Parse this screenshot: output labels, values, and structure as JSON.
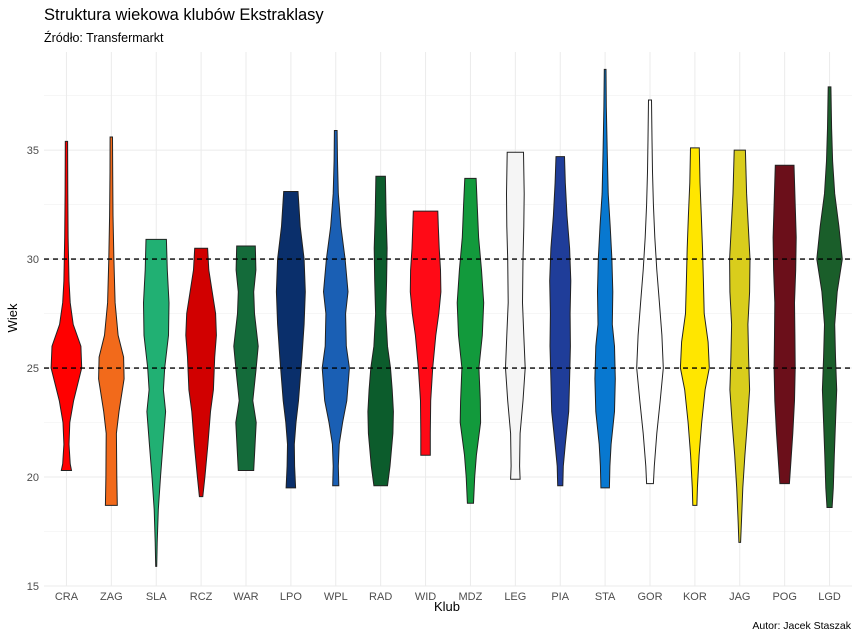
{
  "chart_data": {
    "type": "violin",
    "title": "Struktura wiekowa klubów Ekstraklasy",
    "subtitle": "Źródło: Transfermarkt",
    "xlabel": "Klub",
    "ylabel": "Wiek",
    "caption": "Autor: Jacek Staszak",
    "ylim": [
      15,
      39.5
    ],
    "yticks": [
      15,
      20,
      25,
      30,
      35
    ],
    "reference_lines": [
      25,
      30
    ],
    "grid": true,
    "categories": [
      "CRA",
      "ZAG",
      "SLA",
      "RCZ",
      "WAR",
      "LPO",
      "WPL",
      "RAD",
      "WID",
      "MDZ",
      "LEG",
      "PIA",
      "STA",
      "GOR",
      "KOR",
      "JAG",
      "POG",
      "LGD"
    ],
    "series": [
      {
        "club": "CRA",
        "color": "#ff0000",
        "min": 20.3,
        "max": 35.4,
        "density": [
          [
            20.3,
            0.3
          ],
          [
            20.6,
            0.22
          ],
          [
            21.5,
            0.15
          ],
          [
            22.5,
            0.2
          ],
          [
            23.5,
            0.42
          ],
          [
            25,
            0.9
          ],
          [
            26,
            0.85
          ],
          [
            27,
            0.4
          ],
          [
            28,
            0.22
          ],
          [
            29,
            0.15
          ],
          [
            31,
            0.1
          ],
          [
            33,
            0.08
          ],
          [
            35.4,
            0.07
          ]
        ]
      },
      {
        "club": "ZAG",
        "color": "#f26a1b",
        "min": 18.7,
        "max": 35.6,
        "density": [
          [
            18.7,
            0.35
          ],
          [
            20,
            0.32
          ],
          [
            22,
            0.3
          ],
          [
            23,
            0.45
          ],
          [
            24.5,
            0.75
          ],
          [
            25.5,
            0.72
          ],
          [
            26.5,
            0.4
          ],
          [
            28,
            0.22
          ],
          [
            30,
            0.15
          ],
          [
            32,
            0.1
          ],
          [
            34,
            0.08
          ],
          [
            35.6,
            0.07
          ]
        ]
      },
      {
        "club": "SLA",
        "color": "#21b073",
        "min": 15.9,
        "max": 30.9,
        "density": [
          [
            15.9,
            0.03
          ],
          [
            17,
            0.06
          ],
          [
            18.5,
            0.12
          ],
          [
            20,
            0.25
          ],
          [
            21.5,
            0.4
          ],
          [
            23,
            0.55
          ],
          [
            24,
            0.42
          ],
          [
            25,
            0.5
          ],
          [
            26.5,
            0.72
          ],
          [
            28,
            0.75
          ],
          [
            29.5,
            0.65
          ],
          [
            30.9,
            0.6
          ]
        ]
      },
      {
        "club": "RCZ",
        "color": "#d10000",
        "min": 19.1,
        "max": 30.5,
        "density": [
          [
            19.1,
            0.1
          ],
          [
            20,
            0.22
          ],
          [
            21.5,
            0.4
          ],
          [
            23,
            0.55
          ],
          [
            24,
            0.72
          ],
          [
            25.5,
            0.8
          ],
          [
            26.5,
            0.9
          ],
          [
            27.5,
            0.85
          ],
          [
            28.5,
            0.65
          ],
          [
            29.5,
            0.45
          ],
          [
            30.5,
            0.38
          ]
        ]
      },
      {
        "club": "WAR",
        "color": "#146b3a",
        "min": 20.3,
        "max": 30.6,
        "density": [
          [
            20.3,
            0.45
          ],
          [
            21,
            0.5
          ],
          [
            22.5,
            0.6
          ],
          [
            23.5,
            0.4
          ],
          [
            25,
            0.6
          ],
          [
            26,
            0.72
          ],
          [
            27.5,
            0.5
          ],
          [
            28.5,
            0.45
          ],
          [
            29.5,
            0.58
          ],
          [
            30.6,
            0.55
          ]
        ]
      },
      {
        "club": "LPO",
        "color": "#0a2f6b",
        "min": 19.5,
        "max": 33.1,
        "density": [
          [
            19.5,
            0.28
          ],
          [
            20.5,
            0.22
          ],
          [
            21.5,
            0.2
          ],
          [
            22.5,
            0.3
          ],
          [
            23.5,
            0.45
          ],
          [
            24.5,
            0.55
          ],
          [
            25.5,
            0.65
          ],
          [
            27,
            0.78
          ],
          [
            28.5,
            0.85
          ],
          [
            30,
            0.78
          ],
          [
            31.5,
            0.55
          ],
          [
            33.1,
            0.42
          ]
        ]
      },
      {
        "club": "WPL",
        "color": "#1a5fb4",
        "min": 19.6,
        "max": 35.9,
        "density": [
          [
            19.6,
            0.18
          ],
          [
            20.5,
            0.15
          ],
          [
            21.5,
            0.2
          ],
          [
            22.5,
            0.4
          ],
          [
            23.5,
            0.65
          ],
          [
            25,
            0.8
          ],
          [
            26,
            0.62
          ],
          [
            27.5,
            0.58
          ],
          [
            28.5,
            0.72
          ],
          [
            30,
            0.55
          ],
          [
            31.5,
            0.3
          ],
          [
            33,
            0.15
          ],
          [
            34.5,
            0.1
          ],
          [
            35.9,
            0.08
          ]
        ]
      },
      {
        "club": "RAD",
        "color": "#0c5c2c",
        "min": 19.6,
        "max": 33.8,
        "density": [
          [
            19.6,
            0.4
          ],
          [
            20.5,
            0.55
          ],
          [
            22,
            0.72
          ],
          [
            23,
            0.75
          ],
          [
            24,
            0.68
          ],
          [
            25,
            0.58
          ],
          [
            26,
            0.4
          ],
          [
            27.5,
            0.3
          ],
          [
            29,
            0.35
          ],
          [
            30.5,
            0.38
          ],
          [
            32,
            0.32
          ],
          [
            33.8,
            0.28
          ]
        ]
      },
      {
        "club": "WID",
        "color": "#ff0a16",
        "min": 21.0,
        "max": 32.2,
        "density": [
          [
            21,
            0.28
          ],
          [
            22,
            0.28
          ],
          [
            23.5,
            0.3
          ],
          [
            25,
            0.42
          ],
          [
            26.5,
            0.6
          ],
          [
            27.5,
            0.78
          ],
          [
            28.5,
            0.9
          ],
          [
            29.5,
            0.88
          ],
          [
            30.5,
            0.8
          ],
          [
            31.5,
            0.75
          ],
          [
            32.2,
            0.72
          ]
        ]
      },
      {
        "club": "MDZ",
        "color": "#129a3c",
        "min": 18.8,
        "max": 33.7,
        "density": [
          [
            18.8,
            0.18
          ],
          [
            20,
            0.25
          ],
          [
            21,
            0.35
          ],
          [
            22.5,
            0.6
          ],
          [
            23.5,
            0.58
          ],
          [
            25,
            0.5
          ],
          [
            26.5,
            0.7
          ],
          [
            28,
            0.78
          ],
          [
            29.5,
            0.65
          ],
          [
            31,
            0.48
          ],
          [
            32.5,
            0.4
          ],
          [
            33.7,
            0.33
          ]
        ]
      },
      {
        "club": "LEG",
        "color": "#f5f5f5",
        "min": 19.9,
        "max": 34.9,
        "density": [
          [
            19.9,
            0.28
          ],
          [
            20.5,
            0.25
          ],
          [
            22,
            0.28
          ],
          [
            23.5,
            0.45
          ],
          [
            25,
            0.58
          ],
          [
            26.5,
            0.5
          ],
          [
            28,
            0.42
          ],
          [
            30,
            0.45
          ],
          [
            31.5,
            0.5
          ],
          [
            33,
            0.52
          ],
          [
            34.9,
            0.48
          ]
        ]
      },
      {
        "club": "PIA",
        "color": "#1f3d99",
        "min": 19.6,
        "max": 34.7,
        "density": [
          [
            19.6,
            0.15
          ],
          [
            20.5,
            0.18
          ],
          [
            21.5,
            0.3
          ],
          [
            23,
            0.5
          ],
          [
            24.5,
            0.55
          ],
          [
            26,
            0.6
          ],
          [
            27.5,
            0.58
          ],
          [
            29,
            0.62
          ],
          [
            30.5,
            0.55
          ],
          [
            32,
            0.4
          ],
          [
            33.5,
            0.3
          ],
          [
            34.7,
            0.25
          ]
        ]
      },
      {
        "club": "STA",
        "color": "#0878d0",
        "min": 19.5,
        "max": 38.7,
        "density": [
          [
            19.5,
            0.25
          ],
          [
            20.5,
            0.28
          ],
          [
            21.5,
            0.35
          ],
          [
            23,
            0.55
          ],
          [
            24.5,
            0.6
          ],
          [
            26,
            0.55
          ],
          [
            27,
            0.42
          ],
          [
            28.5,
            0.45
          ],
          [
            30,
            0.4
          ],
          [
            31.5,
            0.3
          ],
          [
            33,
            0.18
          ],
          [
            35,
            0.12
          ],
          [
            37,
            0.07
          ],
          [
            38.7,
            0.05
          ]
        ]
      },
      {
        "club": "GOR",
        "color": "#ffffff",
        "min": 19.7,
        "max": 37.3,
        "density": [
          [
            19.7,
            0.2
          ],
          [
            20.5,
            0.25
          ],
          [
            22,
            0.4
          ],
          [
            23.5,
            0.6
          ],
          [
            25,
            0.78
          ],
          [
            26.5,
            0.7
          ],
          [
            28,
            0.55
          ],
          [
            29.5,
            0.4
          ],
          [
            31,
            0.28
          ],
          [
            32.5,
            0.2
          ],
          [
            34,
            0.15
          ],
          [
            35.5,
            0.12
          ],
          [
            37.3,
            0.09
          ]
        ]
      },
      {
        "club": "KOR",
        "color": "#ffe600",
        "min": 18.7,
        "max": 35.1,
        "density": [
          [
            18.7,
            0.12
          ],
          [
            19.5,
            0.15
          ],
          [
            21,
            0.25
          ],
          [
            22.5,
            0.4
          ],
          [
            24,
            0.6
          ],
          [
            25,
            0.85
          ],
          [
            26.2,
            0.78
          ],
          [
            27.5,
            0.55
          ],
          [
            29,
            0.5
          ],
          [
            30.5,
            0.45
          ],
          [
            32,
            0.38
          ],
          [
            33.5,
            0.3
          ],
          [
            35.1,
            0.26
          ]
        ]
      },
      {
        "club": "JAG",
        "color": "#d9cd1c",
        "min": 17.0,
        "max": 35.0,
        "density": [
          [
            17,
            0.05
          ],
          [
            18,
            0.1
          ],
          [
            19.5,
            0.18
          ],
          [
            21,
            0.3
          ],
          [
            22.5,
            0.45
          ],
          [
            24,
            0.58
          ],
          [
            25.5,
            0.52
          ],
          [
            27,
            0.48
          ],
          [
            28.5,
            0.58
          ],
          [
            30,
            0.6
          ],
          [
            31.5,
            0.5
          ],
          [
            33,
            0.4
          ],
          [
            35,
            0.33
          ]
        ]
      },
      {
        "club": "POG",
        "color": "#6b0f1a",
        "min": 19.7,
        "max": 34.3,
        "density": [
          [
            19.7,
            0.28
          ],
          [
            20.5,
            0.35
          ],
          [
            22,
            0.48
          ],
          [
            23.5,
            0.58
          ],
          [
            25,
            0.62
          ],
          [
            26.5,
            0.6
          ],
          [
            28,
            0.58
          ],
          [
            29.5,
            0.65
          ],
          [
            31,
            0.68
          ],
          [
            32.5,
            0.62
          ],
          [
            34.3,
            0.55
          ]
        ]
      },
      {
        "club": "LGD",
        "color": "#1a5e2a",
        "min": 18.6,
        "max": 37.9,
        "density": [
          [
            18.6,
            0.15
          ],
          [
            19.5,
            0.22
          ],
          [
            21,
            0.28
          ],
          [
            22.5,
            0.35
          ],
          [
            24,
            0.42
          ],
          [
            25.5,
            0.35
          ],
          [
            27,
            0.3
          ],
          [
            28.5,
            0.45
          ],
          [
            30,
            0.75
          ],
          [
            31.5,
            0.55
          ],
          [
            33,
            0.3
          ],
          [
            34.5,
            0.18
          ],
          [
            36,
            0.12
          ],
          [
            37.9,
            0.08
          ]
        ]
      }
    ]
  }
}
